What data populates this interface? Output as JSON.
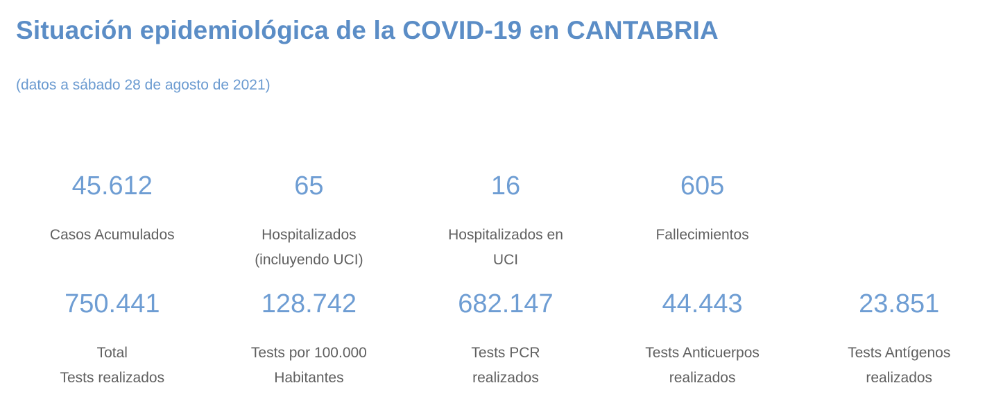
{
  "page": {
    "title": "Situación epidemiológica de la COVID-19 en CANTABRIA",
    "subtitle": "(datos a sábado 28 de agosto de 2021)"
  },
  "colors": {
    "title_blue": "#5B8DC6",
    "subtitle_blue": "#6A9AD0",
    "value_blue": "#6E9DD3",
    "label_gray": "#5F5F5F",
    "page_bg": "#FFFFFF"
  },
  "rows": [
    {
      "cards": [
        {
          "value": "45.612",
          "label": "Casos Acumulados"
        },
        {
          "value": "65",
          "label": "Hospitalizados\n(incluyendo UCI)"
        },
        {
          "value": "16",
          "label": "Hospitalizados en\nUCI"
        },
        {
          "value": "605",
          "label": "Fallecimientos"
        }
      ]
    },
    {
      "cards": [
        {
          "value": "750.441",
          "label": "Total\nTests realizados"
        },
        {
          "value": "128.742",
          "label": "Tests por 100.000\nHabitantes"
        },
        {
          "value": "682.147",
          "label": "Tests PCR\nrealizados"
        },
        {
          "value": "44.443",
          "label": "Tests Anticuerpos\nrealizados"
        },
        {
          "value": "23.851",
          "label": "Tests Antígenos\nrealizados"
        }
      ]
    }
  ],
  "chart_data": {
    "type": "table",
    "title": "Situación epidemiológica de la COVID-19 en CANTABRIA",
    "subtitle": "(datos a sábado 28 de agosto de 2021)",
    "metrics": [
      {
        "label": "Casos Acumulados",
        "value": 45612,
        "display": "45.612"
      },
      {
        "label": "Hospitalizados (incluyendo UCI)",
        "value": 65,
        "display": "65"
      },
      {
        "label": "Hospitalizados en UCI",
        "value": 16,
        "display": "16"
      },
      {
        "label": "Fallecimientos",
        "value": 605,
        "display": "605"
      },
      {
        "label": "Total Tests realizados",
        "value": 750441,
        "display": "750.441"
      },
      {
        "label": "Tests por 100.000 Habitantes",
        "value": 128742,
        "display": "128.742"
      },
      {
        "label": "Tests PCR realizados",
        "value": 682147,
        "display": "682.147"
      },
      {
        "label": "Tests Anticuerpos realizados",
        "value": 44443,
        "display": "44.443"
      },
      {
        "label": "Tests Antígenos realizados",
        "value": 23851,
        "display": "23.851"
      }
    ]
  }
}
